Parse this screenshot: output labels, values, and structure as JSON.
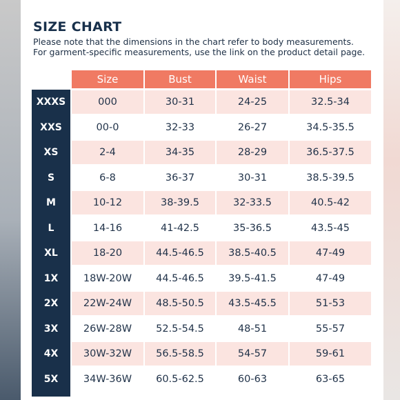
{
  "chart": {
    "title": "SIZE CHART",
    "note_line1": "Please note that the dimensions in the chart refer to body measurements.",
    "note_line2": "For garment-specific measurements, use the link on the product detail page."
  },
  "columns": [
    "Size",
    "Bust",
    "Waist",
    "Hips"
  ],
  "rows": [
    {
      "label": "XXXS",
      "size": "000",
      "bust": "30-31",
      "waist": "24-25",
      "hips": "32.5-34"
    },
    {
      "label": "XXS",
      "size": "00-0",
      "bust": "32-33",
      "waist": "26-27",
      "hips": "34.5-35.5"
    },
    {
      "label": "XS",
      "size": "2-4",
      "bust": "34-35",
      "waist": "28-29",
      "hips": "36.5-37.5"
    },
    {
      "label": "S",
      "size": "6-8",
      "bust": "36-37",
      "waist": "30-31",
      "hips": "38.5-39.5"
    },
    {
      "label": "M",
      "size": "10-12",
      "bust": "38-39.5",
      "waist": "32-33.5",
      "hips": "40.5-42"
    },
    {
      "label": "L",
      "size": "14-16",
      "bust": "41-42.5",
      "waist": "35-36.5",
      "hips": "43.5-45"
    },
    {
      "label": "XL",
      "size": "18-20",
      "bust": "44.5-46.5",
      "waist": "38.5-40.5",
      "hips": "47-49"
    },
    {
      "label": "1X",
      "size": "18W-20W",
      "bust": "44.5-46.5",
      "waist": "39.5-41.5",
      "hips": "47-49"
    },
    {
      "label": "2X",
      "size": "22W-24W",
      "bust": "48.5-50.5",
      "waist": "43.5-45.5",
      "hips": "51-53"
    },
    {
      "label": "3X",
      "size": "26W-28W",
      "bust": "52.5-54.5",
      "waist": "48-51",
      "hips": "55-57"
    },
    {
      "label": "4X",
      "size": "30W-32W",
      "bust": "56.5-58.5",
      "waist": "54-57",
      "hips": "59-61"
    },
    {
      "label": "5X",
      "size": "34W-36W",
      "bust": "60.5-62.5",
      "waist": "60-63",
      "hips": "63-65"
    }
  ],
  "colors": {
    "header": "#f07a63",
    "size_column": "#19304a",
    "row_shade": "#fbe4e0",
    "text": "#1f3148"
  }
}
